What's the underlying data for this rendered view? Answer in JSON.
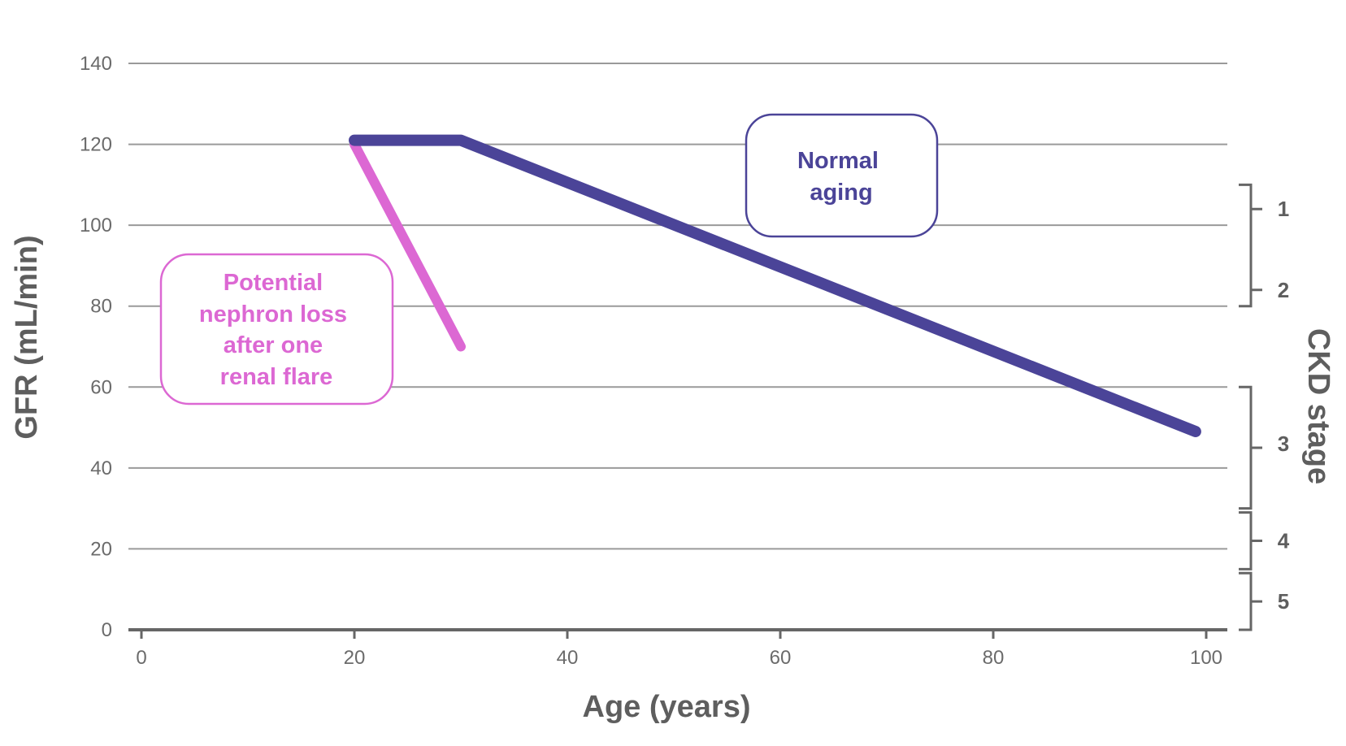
{
  "chart_data": {
    "type": "line",
    "xlabel": "Age (years)",
    "ylabel": "GFR (mL/min)",
    "right_label": "CKD stage",
    "xlim": [
      0,
      100
    ],
    "ylim": [
      0,
      140
    ],
    "x_ticks": [
      "0",
      "20",
      "40",
      "60",
      "80",
      "100"
    ],
    "y_ticks": [
      "0",
      "20",
      "40",
      "60",
      "80",
      "100",
      "120",
      "140"
    ],
    "grid": true,
    "series": [
      {
        "key": "normal",
        "color": "#4b4498",
        "x": [
          20,
          30,
          99
        ],
        "y": [
          121,
          121,
          49
        ]
      },
      {
        "key": "flare",
        "color": "#dc68d3",
        "x": [
          20,
          30
        ],
        "y": [
          120,
          70
        ]
      }
    ],
    "annotations": [
      {
        "key": "normal",
        "lines": [
          "Normal",
          "aging"
        ],
        "color": "#4b4498"
      },
      {
        "key": "flare",
        "lines": [
          "Potential",
          "nephron loss",
          "after one",
          "renal flare"
        ],
        "color": "#dc68d3"
      }
    ],
    "ckd_stages": [
      {
        "label": "1",
        "gfr_range": [
          90,
          110
        ]
      },
      {
        "label": "2",
        "gfr_range": [
          80,
          90
        ]
      },
      {
        "label": "3",
        "gfr_range": [
          30,
          60
        ]
      },
      {
        "label": "4",
        "gfr_range": [
          15,
          29
        ]
      },
      {
        "label": "5",
        "gfr_range": [
          0,
          14
        ]
      }
    ]
  }
}
